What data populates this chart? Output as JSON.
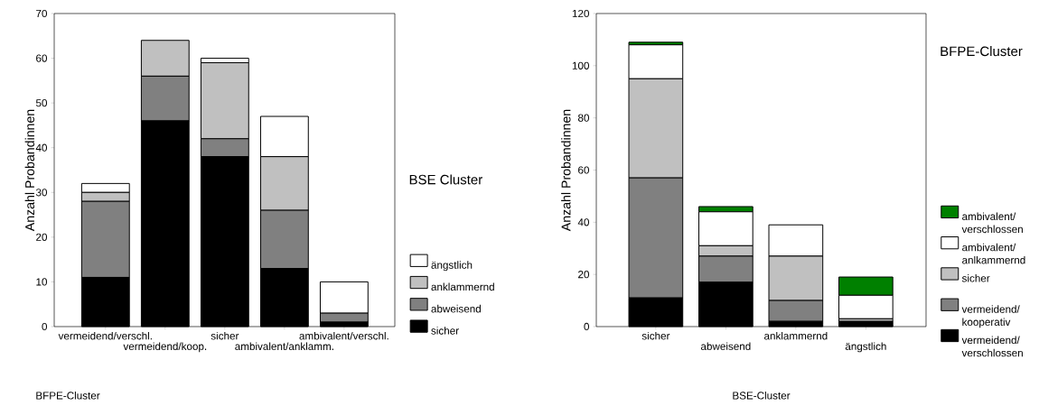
{
  "chart_data": [
    {
      "type": "bar",
      "stacked": true,
      "categories": [
        "vermeidend/verschl.",
        "vermeidend/koop.",
        "sicher",
        "ambivalent/anklamm.",
        "ambivalent/verschl."
      ],
      "series": [
        {
          "name": "sicher",
          "color": "#000000",
          "values": [
            11,
            46,
            38,
            13,
            1
          ]
        },
        {
          "name": "abweisend",
          "color": "#808080",
          "values": [
            17,
            10,
            4,
            13,
            2
          ]
        },
        {
          "name": "anklammernd",
          "color": "#c0c0c0",
          "values": [
            2,
            8,
            17,
            12,
            0
          ]
        },
        {
          "name": "ängstlich",
          "color": "#ffffff",
          "values": [
            2,
            0,
            1,
            9,
            7
          ]
        }
      ],
      "xlabel": "BFPE-Cluster",
      "ylabel": "Anzahl Probandinnen",
      "legend_title": "BSE Cluster",
      "legend": "right",
      "ylim": [
        0,
        70
      ],
      "yticks": [
        0,
        10,
        20,
        30,
        40,
        50,
        60,
        70
      ],
      "grid": false
    },
    {
      "type": "bar",
      "stacked": true,
      "categories": [
        "sicher",
        "abweisend",
        "anklammernd",
        "ängstlich"
      ],
      "series": [
        {
          "name": "vermeidend/ verschlossen",
          "color": "#000000",
          "values": [
            11,
            17,
            2,
            2
          ]
        },
        {
          "name": "vermeidend/ kooperativ",
          "color": "#808080",
          "values": [
            46,
            10,
            8,
            0
          ]
        },
        {
          "name": "sicher",
          "color": "#c0c0c0",
          "values": [
            38,
            4,
            17,
            1
          ]
        },
        {
          "name": "ambivalent/ anlkammernd",
          "color": "#ffffff",
          "values": [
            13,
            13,
            12,
            9
          ]
        },
        {
          "name": "ambivalent/ verschlossen",
          "color": "#008000",
          "values": [
            1,
            2,
            0,
            7
          ]
        }
      ],
      "xlabel": "BSE-Cluster",
      "ylabel": "Anzahl Probandinnen",
      "legend_title": "BFPE-Cluster",
      "legend": "right",
      "ylim": [
        0,
        120
      ],
      "yticks": [
        0,
        20,
        40,
        60,
        80,
        100,
        120
      ],
      "grid": false
    }
  ]
}
